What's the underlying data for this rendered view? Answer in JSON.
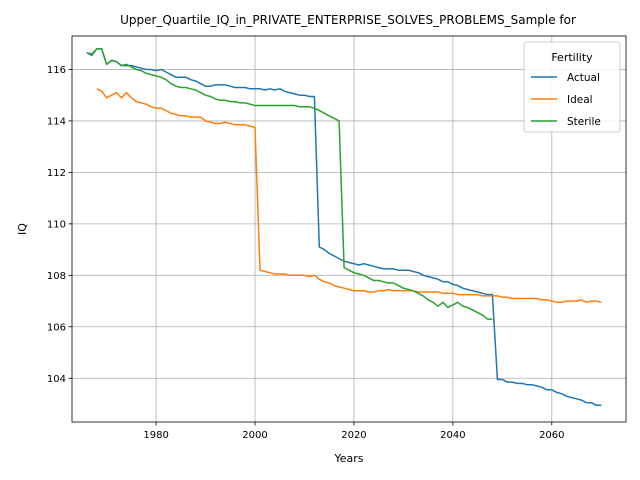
{
  "chart_data": {
    "type": "line",
    "title": "Upper_Quartile_IQ_in_PRIVATE_ENTERPRISE_SOLVES_PROBLEMS_Sample for",
    "xlabel": "Years",
    "ylabel": "IQ",
    "xlim": [
      1963,
      2075
    ],
    "ylim": [
      102.3,
      117.3
    ],
    "xticks": [
      1980,
      2000,
      2020,
      2040,
      2060
    ],
    "yticks": [
      104,
      106,
      108,
      110,
      112,
      114,
      116
    ],
    "grid": true,
    "legend": {
      "title": "Fertility",
      "placement": "top-right"
    },
    "series": [
      {
        "name": "Actual",
        "color": "#1f77b4",
        "points": [
          [
            1966,
            116.65
          ],
          [
            1967,
            116.55
          ],
          [
            1968,
            116.8
          ],
          [
            1969,
            116.8
          ],
          [
            1970,
            116.2
          ],
          [
            1971,
            116.35
          ],
          [
            1972,
            116.3
          ],
          [
            1973,
            116.15
          ],
          [
            1974,
            116.15
          ],
          [
            1975,
            116.15
          ],
          [
            1976,
            116.1
          ],
          [
            1977,
            116.05
          ],
          [
            1978,
            116.0
          ],
          [
            1979,
            116.0
          ],
          [
            1980,
            115.95
          ],
          [
            1981,
            116.0
          ],
          [
            1982,
            115.9
          ],
          [
            1983,
            115.8
          ],
          [
            1984,
            115.7
          ],
          [
            1985,
            115.7
          ],
          [
            1986,
            115.7
          ],
          [
            1987,
            115.6
          ],
          [
            1988,
            115.55
          ],
          [
            1989,
            115.45
          ],
          [
            1990,
            115.35
          ],
          [
            1991,
            115.35
          ],
          [
            1992,
            115.4
          ],
          [
            1993,
            115.4
          ],
          [
            1994,
            115.4
          ],
          [
            1995,
            115.35
          ],
          [
            1996,
            115.3
          ],
          [
            1997,
            115.3
          ],
          [
            1998,
            115.3
          ],
          [
            1999,
            115.25
          ],
          [
            2000,
            115.25
          ],
          [
            2001,
            115.25
          ],
          [
            2002,
            115.2
          ],
          [
            2003,
            115.25
          ],
          [
            2004,
            115.2
          ],
          [
            2005,
            115.25
          ],
          [
            2006,
            115.15
          ],
          [
            2007,
            115.1
          ],
          [
            2008,
            115.05
          ],
          [
            2009,
            115.0
          ],
          [
            2010,
            115.0
          ],
          [
            2011,
            114.95
          ],
          [
            2012,
            114.95
          ],
          [
            2013,
            109.1
          ],
          [
            2014,
            109.0
          ],
          [
            2015,
            108.85
          ],
          [
            2016,
            108.75
          ],
          [
            2017,
            108.65
          ],
          [
            2018,
            108.55
          ],
          [
            2019,
            108.5
          ],
          [
            2020,
            108.45
          ],
          [
            2021,
            108.4
          ],
          [
            2022,
            108.45
          ],
          [
            2023,
            108.4
          ],
          [
            2024,
            108.35
          ],
          [
            2025,
            108.3
          ],
          [
            2026,
            108.25
          ],
          [
            2027,
            108.25
          ],
          [
            2028,
            108.25
          ],
          [
            2029,
            108.2
          ],
          [
            2030,
            108.2
          ],
          [
            2031,
            108.2
          ],
          [
            2032,
            108.15
          ],
          [
            2033,
            108.1
          ],
          [
            2034,
            108.0
          ],
          [
            2035,
            107.95
          ],
          [
            2036,
            107.9
          ],
          [
            2037,
            107.85
          ],
          [
            2038,
            107.75
          ],
          [
            2039,
            107.75
          ],
          [
            2040,
            107.65
          ],
          [
            2041,
            107.6
          ],
          [
            2042,
            107.5
          ],
          [
            2043,
            107.45
          ],
          [
            2044,
            107.4
          ],
          [
            2045,
            107.35
          ],
          [
            2046,
            107.3
          ],
          [
            2047,
            107.25
          ],
          [
            2048,
            107.25
          ],
          [
            2049,
            103.95
          ],
          [
            2050,
            103.95
          ],
          [
            2051,
            103.85
          ],
          [
            2052,
            103.85
          ],
          [
            2053,
            103.8
          ],
          [
            2054,
            103.8
          ],
          [
            2055,
            103.75
          ],
          [
            2056,
            103.75
          ],
          [
            2057,
            103.7
          ],
          [
            2058,
            103.65
          ],
          [
            2059,
            103.55
          ],
          [
            2060,
            103.55
          ],
          [
            2061,
            103.45
          ],
          [
            2062,
            103.4
          ],
          [
            2063,
            103.3
          ],
          [
            2064,
            103.25
          ],
          [
            2065,
            103.2
          ],
          [
            2066,
            103.15
          ],
          [
            2067,
            103.05
          ],
          [
            2068,
            103.05
          ],
          [
            2069,
            102.95
          ],
          [
            2070,
            102.95
          ]
        ]
      },
      {
        "name": "Ideal",
        "color": "#ff7f0e",
        "points": [
          [
            1968,
            115.25
          ],
          [
            1969,
            115.15
          ],
          [
            1970,
            114.9
          ],
          [
            1971,
            115.0
          ],
          [
            1972,
            115.1
          ],
          [
            1973,
            114.9
          ],
          [
            1974,
            115.1
          ],
          [
            1975,
            114.9
          ],
          [
            1976,
            114.75
          ],
          [
            1977,
            114.7
          ],
          [
            1978,
            114.65
          ],
          [
            1979,
            114.55
          ],
          [
            1980,
            114.5
          ],
          [
            1981,
            114.5
          ],
          [
            1982,
            114.4
          ],
          [
            1983,
            114.3
          ],
          [
            1984,
            114.25
          ],
          [
            1985,
            114.2
          ],
          [
            1986,
            114.2
          ],
          [
            1987,
            114.15
          ],
          [
            1988,
            114.15
          ],
          [
            1989,
            114.15
          ],
          [
            1990,
            114.0
          ],
          [
            1991,
            113.95
          ],
          [
            1992,
            113.9
          ],
          [
            1993,
            113.9
          ],
          [
            1994,
            113.95
          ],
          [
            1995,
            113.9
          ],
          [
            1996,
            113.85
          ],
          [
            1997,
            113.85
          ],
          [
            1998,
            113.85
          ],
          [
            1999,
            113.8
          ],
          [
            2000,
            113.75
          ],
          [
            2001,
            108.2
          ],
          [
            2002,
            108.15
          ],
          [
            2003,
            108.1
          ],
          [
            2004,
            108.05
          ],
          [
            2005,
            108.05
          ],
          [
            2006,
            108.05
          ],
          [
            2007,
            108.0
          ],
          [
            2008,
            108.0
          ],
          [
            2009,
            108.0
          ],
          [
            2010,
            108.0
          ],
          [
            2011,
            107.95
          ],
          [
            2012,
            108.0
          ],
          [
            2013,
            107.85
          ],
          [
            2014,
            107.75
          ],
          [
            2015,
            107.7
          ],
          [
            2016,
            107.6
          ],
          [
            2017,
            107.55
          ],
          [
            2018,
            107.5
          ],
          [
            2019,
            107.45
          ],
          [
            2020,
            107.4
          ],
          [
            2021,
            107.4
          ],
          [
            2022,
            107.4
          ],
          [
            2023,
            107.35
          ],
          [
            2024,
            107.35
          ],
          [
            2025,
            107.4
          ],
          [
            2026,
            107.4
          ],
          [
            2027,
            107.45
          ],
          [
            2028,
            107.4
          ],
          [
            2029,
            107.4
          ],
          [
            2030,
            107.4
          ],
          [
            2031,
            107.4
          ],
          [
            2032,
            107.4
          ],
          [
            2033,
            107.35
          ],
          [
            2034,
            107.35
          ],
          [
            2035,
            107.35
          ],
          [
            2036,
            107.35
          ],
          [
            2037,
            107.35
          ],
          [
            2038,
            107.3
          ],
          [
            2039,
            107.3
          ],
          [
            2040,
            107.3
          ],
          [
            2041,
            107.25
          ],
          [
            2042,
            107.25
          ],
          [
            2043,
            107.25
          ],
          [
            2044,
            107.25
          ],
          [
            2045,
            107.25
          ],
          [
            2046,
            107.2
          ],
          [
            2047,
            107.2
          ],
          [
            2048,
            107.2
          ],
          [
            2049,
            107.2
          ],
          [
            2050,
            107.15
          ],
          [
            2051,
            107.15
          ],
          [
            2052,
            107.1
          ],
          [
            2053,
            107.1
          ],
          [
            2054,
            107.1
          ],
          [
            2055,
            107.1
          ],
          [
            2056,
            107.1
          ],
          [
            2057,
            107.1
          ],
          [
            2058,
            107.05
          ],
          [
            2059,
            107.05
          ],
          [
            2060,
            107.0
          ],
          [
            2061,
            106.95
          ],
          [
            2062,
            106.95
          ],
          [
            2063,
            107.0
          ],
          [
            2064,
            107.0
          ],
          [
            2065,
            107.0
          ],
          [
            2066,
            107.05
          ],
          [
            2067,
            106.95
          ],
          [
            2068,
            107.0
          ],
          [
            2069,
            107.0
          ],
          [
            2070,
            106.95
          ]
        ]
      },
      {
        "name": "Sterile",
        "color": "#2ca02c",
        "points": [
          [
            1966,
            116.65
          ],
          [
            1967,
            116.6
          ],
          [
            1968,
            116.8
          ],
          [
            1969,
            116.8
          ],
          [
            1970,
            116.2
          ],
          [
            1971,
            116.35
          ],
          [
            1972,
            116.3
          ],
          [
            1973,
            116.15
          ],
          [
            1974,
            116.2
          ],
          [
            1975,
            116.1
          ],
          [
            1976,
            116.0
          ],
          [
            1977,
            115.95
          ],
          [
            1978,
            115.85
          ],
          [
            1979,
            115.8
          ],
          [
            1980,
            115.75
          ],
          [
            1981,
            115.7
          ],
          [
            1982,
            115.6
          ],
          [
            1983,
            115.45
          ],
          [
            1984,
            115.35
          ],
          [
            1985,
            115.3
          ],
          [
            1986,
            115.3
          ],
          [
            1987,
            115.25
          ],
          [
            1988,
            115.2
          ],
          [
            1989,
            115.1
          ],
          [
            1990,
            115.0
          ],
          [
            1991,
            114.95
          ],
          [
            1992,
            114.85
          ],
          [
            1993,
            114.8
          ],
          [
            1994,
            114.8
          ],
          [
            1995,
            114.75
          ],
          [
            1996,
            114.75
          ],
          [
            1997,
            114.7
          ],
          [
            1998,
            114.7
          ],
          [
            1999,
            114.65
          ],
          [
            2000,
            114.6
          ],
          [
            2001,
            114.6
          ],
          [
            2002,
            114.6
          ],
          [
            2003,
            114.6
          ],
          [
            2004,
            114.6
          ],
          [
            2005,
            114.6
          ],
          [
            2006,
            114.6
          ],
          [
            2007,
            114.6
          ],
          [
            2008,
            114.6
          ],
          [
            2009,
            114.55
          ],
          [
            2010,
            114.55
          ],
          [
            2011,
            114.55
          ],
          [
            2012,
            114.5
          ],
          [
            2013,
            114.4
          ],
          [
            2014,
            114.3
          ],
          [
            2015,
            114.2
          ],
          [
            2016,
            114.1
          ],
          [
            2017,
            114.0
          ],
          [
            2018,
            108.3
          ],
          [
            2019,
            108.2
          ],
          [
            2020,
            108.1
          ],
          [
            2021,
            108.05
          ],
          [
            2022,
            108.0
          ],
          [
            2023,
            107.9
          ],
          [
            2024,
            107.8
          ],
          [
            2025,
            107.8
          ],
          [
            2026,
            107.75
          ],
          [
            2027,
            107.7
          ],
          [
            2028,
            107.7
          ],
          [
            2029,
            107.6
          ],
          [
            2030,
            107.5
          ],
          [
            2031,
            107.45
          ],
          [
            2032,
            107.4
          ],
          [
            2033,
            107.3
          ],
          [
            2034,
            107.2
          ],
          [
            2035,
            107.05
          ],
          [
            2036,
            106.95
          ],
          [
            2037,
            106.8
          ],
          [
            2038,
            106.95
          ],
          [
            2039,
            106.75
          ],
          [
            2040,
            106.85
          ],
          [
            2041,
            106.95
          ],
          [
            2042,
            106.8
          ],
          [
            2043,
            106.75
          ],
          [
            2044,
            106.65
          ],
          [
            2045,
            106.55
          ],
          [
            2046,
            106.45
          ],
          [
            2047,
            106.3
          ],
          [
            2048,
            106.3
          ]
        ]
      }
    ]
  }
}
